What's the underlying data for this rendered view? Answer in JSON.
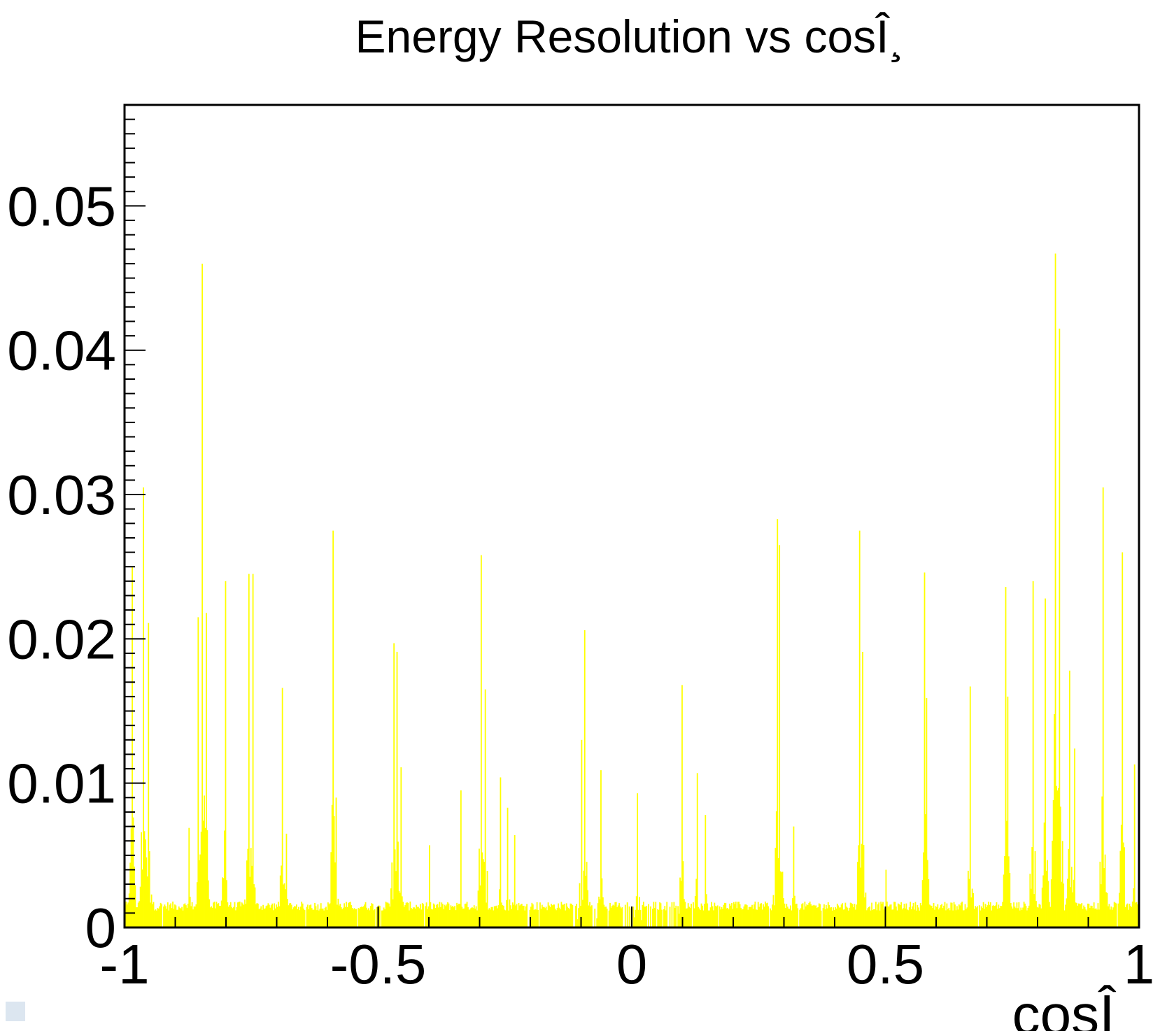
{
  "chart_data": {
    "type": "bar",
    "title": "Energy Resolution vs cosÎ¸",
    "xlabel": "cosÎ¸",
    "ylabel": "",
    "xlim": [
      -1,
      1
    ],
    "ylim": [
      0,
      0.057
    ],
    "x_ticks": [
      -1,
      -0.5,
      0,
      0.5,
      1
    ],
    "x_tick_labels": [
      "-1",
      "-0.5",
      "0",
      "0.5",
      "1"
    ],
    "y_ticks": [
      0,
      0.01,
      0.02,
      0.03,
      0.04,
      0.05
    ],
    "y_tick_labels": [
      "0",
      "0.01",
      "0.02",
      "0.03",
      "0.04",
      "0.05"
    ],
    "grid": false,
    "legend": false,
    "colors": {
      "bar": "#ffff00",
      "axis": "#000000",
      "background": "#ffffff"
    },
    "bins": 1000,
    "baseline": 0.0015,
    "peaks": [
      {
        "x": -0.985,
        "y": 0.025
      },
      {
        "x": -0.963,
        "y": 0.0305
      },
      {
        "x": -0.954,
        "y": 0.0211
      },
      {
        "x": -0.874,
        "y": 0.0069
      },
      {
        "x": -0.855,
        "y": 0.0215
      },
      {
        "x": -0.847,
        "y": 0.046
      },
      {
        "x": -0.84,
        "y": 0.0218
      },
      {
        "x": -0.8,
        "y": 0.024
      },
      {
        "x": -0.755,
        "y": 0.0245
      },
      {
        "x": -0.748,
        "y": 0.0245
      },
      {
        "x": -0.69,
        "y": 0.0166
      },
      {
        "x": -0.68,
        "y": 0.0065
      },
      {
        "x": -0.59,
        "y": 0.0275
      },
      {
        "x": -0.583,
        "y": 0.009
      },
      {
        "x": -0.47,
        "y": 0.0197
      },
      {
        "x": -0.463,
        "y": 0.0191
      },
      {
        "x": -0.455,
        "y": 0.0111
      },
      {
        "x": -0.4,
        "y": 0.0057
      },
      {
        "x": -0.336,
        "y": 0.0095
      },
      {
        "x": -0.297,
        "y": 0.0258
      },
      {
        "x": -0.29,
        "y": 0.0165
      },
      {
        "x": -0.26,
        "y": 0.0104
      },
      {
        "x": -0.245,
        "y": 0.0083
      },
      {
        "x": -0.231,
        "y": 0.0064
      },
      {
        "x": -0.1,
        "y": 0.013
      },
      {
        "x": -0.094,
        "y": 0.0206
      },
      {
        "x": -0.06,
        "y": 0.0109
      },
      {
        "x": 0.01,
        "y": 0.0093
      },
      {
        "x": 0.098,
        "y": 0.0168
      },
      {
        "x": 0.13,
        "y": 0.0107
      },
      {
        "x": 0.145,
        "y": 0.0078
      },
      {
        "x": 0.286,
        "y": 0.0283
      },
      {
        "x": 0.291,
        "y": 0.0265
      },
      {
        "x": 0.318,
        "y": 0.007
      },
      {
        "x": 0.449,
        "y": 0.0275
      },
      {
        "x": 0.455,
        "y": 0.0191
      },
      {
        "x": 0.5,
        "y": 0.004
      },
      {
        "x": 0.576,
        "y": 0.0246
      },
      {
        "x": 0.581,
        "y": 0.0159
      },
      {
        "x": 0.667,
        "y": 0.0167
      },
      {
        "x": 0.736,
        "y": 0.0236
      },
      {
        "x": 0.74,
        "y": 0.016
      },
      {
        "x": 0.79,
        "y": 0.024
      },
      {
        "x": 0.815,
        "y": 0.0228
      },
      {
        "x": 0.836,
        "y": 0.0467
      },
      {
        "x": 0.842,
        "y": 0.0415
      },
      {
        "x": 0.862,
        "y": 0.0178
      },
      {
        "x": 0.873,
        "y": 0.0124
      },
      {
        "x": 0.928,
        "y": 0.0305
      },
      {
        "x": 0.966,
        "y": 0.026
      },
      {
        "x": 0.99,
        "y": 0.0113
      }
    ]
  }
}
